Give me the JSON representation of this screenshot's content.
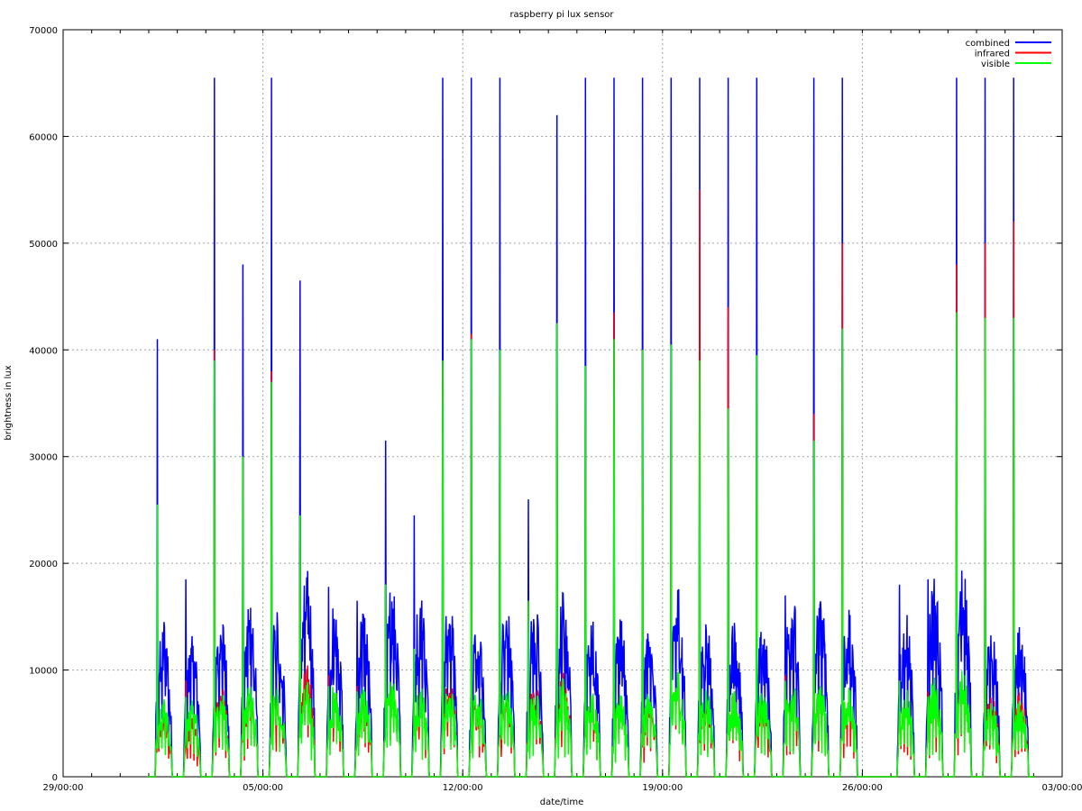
{
  "chart_data": {
    "type": "line",
    "title": "raspberry pi lux sensor",
    "xlabel": "date/time",
    "ylabel": "brightness in lux",
    "x_axis": {
      "range_days": [
        0,
        35
      ],
      "ticks": [
        {
          "day": 0,
          "label": "29/00:00"
        },
        {
          "day": 7,
          "label": "05/00:00"
        },
        {
          "day": 14,
          "label": "12/00:00"
        },
        {
          "day": 21,
          "label": "19/00:00"
        },
        {
          "day": 28,
          "label": "26/00:00"
        },
        {
          "day": 35,
          "label": "03/00:00"
        }
      ]
    },
    "ylim": [
      0,
      70000
    ],
    "y_ticks": [
      0,
      10000,
      20000,
      30000,
      40000,
      50000,
      60000,
      70000
    ],
    "grid": true,
    "legend_position": "top-right",
    "series": [
      {
        "name": "combined",
        "color": "#0000ff"
      },
      {
        "name": "infrared",
        "color": "#ff0000"
      },
      {
        "name": "visible",
        "color": "#00ff00"
      }
    ],
    "daily_peaks": [
      {
        "day_index": 3,
        "combined": 41000,
        "infrared": 9000,
        "visible": 25500,
        "typical_combined": 14000,
        "typical_infrared": 6000,
        "typical_visible": 7000
      },
      {
        "day_index": 4,
        "combined": 18500,
        "infrared": 9000,
        "visible": 7500,
        "typical_combined": 12000,
        "typical_infrared": 5000,
        "typical_visible": 6500
      },
      {
        "day_index": 5,
        "combined": 65500,
        "infrared": 40000,
        "visible": 39000,
        "typical_combined": 14000,
        "typical_infrared": 8000,
        "typical_visible": 7500
      },
      {
        "day_index": 6,
        "combined": 48000,
        "infrared": 30000,
        "visible": 30000,
        "typical_combined": 16000,
        "typical_infrared": 8000,
        "typical_visible": 8500
      },
      {
        "day_index": 7,
        "combined": 65500,
        "infrared": 38000,
        "visible": 37000,
        "typical_combined": 15000,
        "typical_infrared": 8000,
        "typical_visible": 8000
      },
      {
        "day_index": 8,
        "combined": 46500,
        "infrared": 24500,
        "visible": 24500,
        "typical_combined": 18500,
        "typical_infrared": 10000,
        "typical_visible": 8500
      },
      {
        "day_index": 9,
        "combined": 17800,
        "infrared": 9500,
        "visible": 8500,
        "typical_combined": 15000,
        "typical_infrared": 8000,
        "typical_visible": 8000
      },
      {
        "day_index": 10,
        "combined": 16500,
        "infrared": 8500,
        "visible": 8000,
        "typical_combined": 14000,
        "typical_infrared": 7000,
        "typical_visible": 7500
      },
      {
        "day_index": 11,
        "combined": 31500,
        "infrared": 18000,
        "visible": 18000,
        "typical_combined": 16500,
        "typical_infrared": 8500,
        "typical_visible": 8500
      },
      {
        "day_index": 12,
        "combined": 24500,
        "infrared": 12000,
        "visible": 12000,
        "typical_combined": 16000,
        "typical_infrared": 8000,
        "typical_visible": 8000
      },
      {
        "day_index": 13,
        "combined": 65500,
        "infrared": 39000,
        "visible": 39000,
        "typical_combined": 15500,
        "typical_infrared": 8500,
        "typical_visible": 8000
      },
      {
        "day_index": 14,
        "combined": 65500,
        "infrared": 41500,
        "visible": 41000,
        "typical_combined": 13000,
        "typical_infrared": 7000,
        "typical_visible": 7500
      },
      {
        "day_index": 15,
        "combined": 65500,
        "infrared": 39500,
        "visible": 40000,
        "typical_combined": 15000,
        "typical_infrared": 7500,
        "typical_visible": 8000
      },
      {
        "day_index": 16,
        "combined": 26000,
        "infrared": 16500,
        "visible": 16500,
        "typical_combined": 15000,
        "typical_infrared": 8000,
        "typical_visible": 7500
      },
      {
        "day_index": 17,
        "combined": 62000,
        "infrared": 42500,
        "visible": 42500,
        "typical_combined": 16000,
        "typical_infrared": 9000,
        "typical_visible": 8500
      },
      {
        "day_index": 18,
        "combined": 65500,
        "infrared": 38500,
        "visible": 38500,
        "typical_combined": 14000,
        "typical_infrared": 7500,
        "typical_visible": 7500
      },
      {
        "day_index": 19,
        "combined": 65500,
        "infrared": 43500,
        "visible": 41000,
        "typical_combined": 13500,
        "typical_infrared": 7000,
        "typical_visible": 7000
      },
      {
        "day_index": 20,
        "combined": 65500,
        "infrared": 40000,
        "visible": 40000,
        "typical_combined": 13000,
        "typical_infrared": 7000,
        "typical_visible": 7500
      },
      {
        "day_index": 21,
        "combined": 65500,
        "infrared": 40500,
        "visible": 40500,
        "typical_combined": 17000,
        "typical_infrared": 9500,
        "typical_visible": 9500
      },
      {
        "day_index": 22,
        "combined": 65500,
        "infrared": 55000,
        "visible": 39000,
        "typical_combined": 14000,
        "typical_infrared": 7500,
        "typical_visible": 8000
      },
      {
        "day_index": 23,
        "combined": 65500,
        "infrared": 44000,
        "visible": 34500,
        "typical_combined": 13500,
        "typical_infrared": 7500,
        "typical_visible": 7500
      },
      {
        "day_index": 24,
        "combined": 65500,
        "infrared": 39500,
        "visible": 39500,
        "typical_combined": 13000,
        "typical_infrared": 7000,
        "typical_visible": 7500
      },
      {
        "day_index": 25,
        "combined": 17000,
        "infrared": 9500,
        "visible": 9000,
        "typical_combined": 16500,
        "typical_infrared": 8500,
        "typical_visible": 8500
      },
      {
        "day_index": 26,
        "combined": 65500,
        "infrared": 34000,
        "visible": 31500,
        "typical_combined": 15500,
        "typical_infrared": 8000,
        "typical_visible": 8000
      },
      {
        "day_index": 27,
        "combined": 65500,
        "infrared": 50000,
        "visible": 42000,
        "typical_combined": 15000,
        "typical_infrared": 8000,
        "typical_visible": 8000
      },
      {
        "day_index": 29,
        "combined": 18000,
        "infrared": 9000,
        "visible": 9000,
        "typical_combined": 14000,
        "typical_infrared": 7500,
        "typical_visible": 7500
      },
      {
        "day_index": 30,
        "combined": 18500,
        "infrared": 8000,
        "visible": 7500,
        "typical_combined": 17000,
        "typical_infrared": 8500,
        "typical_visible": 8500
      },
      {
        "day_index": 31,
        "combined": 65500,
        "infrared": 48000,
        "visible": 43500,
        "typical_combined": 18500,
        "typical_infrared": 9500,
        "typical_visible": 9500
      },
      {
        "day_index": 32,
        "combined": 65500,
        "infrared": 50000,
        "visible": 43000,
        "typical_combined": 12500,
        "typical_infrared": 7000,
        "typical_visible": 6500
      },
      {
        "day_index": 33,
        "combined": 65500,
        "infrared": 52000,
        "visible": 43000,
        "typical_combined": 12800,
        "typical_infrared": 7200,
        "typical_visible": 6500
      }
    ]
  }
}
